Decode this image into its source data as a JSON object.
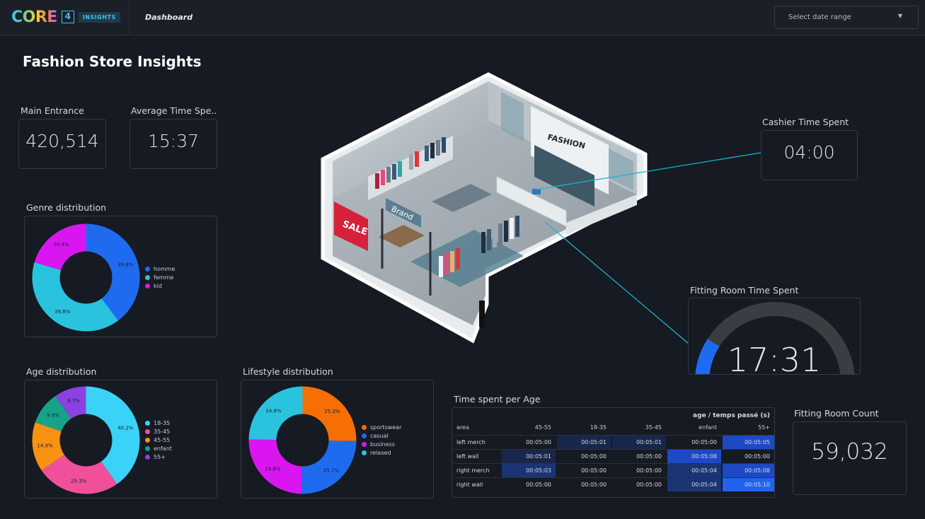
{
  "header": {
    "logo_text": "CORE",
    "logo_number": "4",
    "logo_badge": "INSIGHTS",
    "nav_title": "Dashboard",
    "date_placeholder": "Select date range"
  },
  "page_title": "Fashion Store Insights",
  "kpis": {
    "main_entrance": {
      "label": "Main Entrance",
      "value": "420,514"
    },
    "avg_time": {
      "label": "Average Time Spe...",
      "value": "15:37"
    },
    "cashier": {
      "label": "Cashier Time Spent",
      "value": "04:00"
    },
    "fitting_time": {
      "label": "Fitting Room Time Spent",
      "value": "17:31",
      "gauge_fraction": 0.18
    },
    "fitting_count": {
      "label": "Fitting Room Count",
      "value": "59,032"
    }
  },
  "scene": {
    "sign_fashion": "FASHION",
    "sign_brand": "Brand",
    "sign_sale": "SALE"
  },
  "colors": {
    "blue": "#1f6bf0",
    "cyan": "#2ac3df",
    "magenta": "#d916f0",
    "light_cyan": "#3ad3f7",
    "pink": "#f0509a",
    "orange": "#f99112",
    "teal": "#16a38b",
    "purple": "#8a42e0",
    "deep_orange": "#f56f05"
  },
  "chart_data": [
    {
      "type": "pie",
      "title": "Genre distribution",
      "categories": [
        "homme",
        "femme",
        "kid"
      ],
      "values": [
        39.8,
        39.8,
        20.4
      ],
      "labels": [
        "39.8%",
        "39.8%",
        "20.4%"
      ],
      "colors": [
        "#1f6bf0",
        "#2ac3df",
        "#d916f0"
      ],
      "legend": "right"
    },
    {
      "type": "pie",
      "title": "Age distribution",
      "categories": [
        "18-35",
        "35-45",
        "45-55",
        "enfant",
        "55+"
      ],
      "values": [
        40.2,
        25.3,
        14.9,
        9.9,
        9.7
      ],
      "labels": [
        "40.2%",
        "25.3%",
        "14.9%",
        "9.9%",
        "9.7%"
      ],
      "colors": [
        "#3ad3f7",
        "#f0509a",
        "#f99112",
        "#16a38b",
        "#8a42e0"
      ],
      "legend": "right"
    },
    {
      "type": "pie",
      "title": "Lifestyle distribution",
      "categories": [
        "sportswear",
        "casual",
        "business",
        "relaxed"
      ],
      "values": [
        25.3,
        25.1,
        24.8,
        24.8
      ],
      "labels": [
        "25.3%",
        "25.1%",
        "24.8%",
        "24.8%"
      ],
      "colors": [
        "#f56f05",
        "#1f6bf0",
        "#d916f0",
        "#2ac3df"
      ],
      "legend": "right"
    },
    {
      "type": "table",
      "title": "Time spent per Age",
      "subtitle": "age / temps passé (s)",
      "row_header": "area",
      "columns": [
        "45-55",
        "18-35",
        "35-45",
        "enfant",
        "55+"
      ],
      "rows": [
        {
          "area": "left merch",
          "values": [
            "00:05:00",
            "00:05:01",
            "00:05:01",
            "00:05:00",
            "00:05:05"
          ],
          "shade": [
            0,
            1,
            1,
            0,
            3
          ]
        },
        {
          "area": "left wall",
          "values": [
            "00:05:01",
            "00:05:00",
            "00:05:00",
            "00:05:08",
            "00:05:00"
          ],
          "shade": [
            1,
            0,
            0,
            3,
            0
          ]
        },
        {
          "area": "right merch",
          "values": [
            "00:05:03",
            "00:05:00",
            "00:05:00",
            "00:05:04",
            "00:05:08"
          ],
          "shade": [
            2,
            0,
            0,
            2,
            3
          ]
        },
        {
          "area": "right wall",
          "values": [
            "00:05:00",
            "00:05:00",
            "00:05:00",
            "00:05:04",
            "00:05:10"
          ],
          "shade": [
            0,
            0,
            0,
            2,
            4
          ]
        }
      ]
    }
  ]
}
